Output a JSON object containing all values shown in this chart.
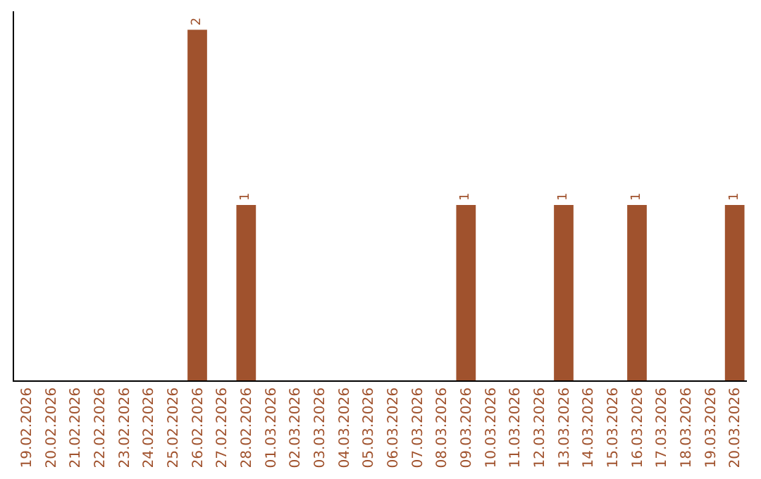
{
  "chart_data": {
    "type": "bar",
    "categories": [
      "19.02.2026",
      "20.02.2026",
      "21.02.2026",
      "22.02.2026",
      "23.02.2026",
      "24.02.2026",
      "25.02.2026",
      "26.02.2026",
      "27.02.2026",
      "28.02.2026",
      "01.03.2026",
      "02.03.2026",
      "03.03.2026",
      "04.03.2026",
      "05.03.2026",
      "06.03.2026",
      "07.03.2026",
      "08.03.2026",
      "09.03.2026",
      "10.03.2026",
      "11.03.2026",
      "12.03.2026",
      "13.03.2026",
      "14.03.2026",
      "15.03.2026",
      "16.03.2026",
      "17.03.2026",
      "18.03.2026",
      "19.03.2026",
      "20.03.2026"
    ],
    "values": [
      0,
      0,
      0,
      0,
      0,
      0,
      0,
      2,
      0,
      1,
      0,
      0,
      0,
      0,
      0,
      0,
      0,
      0,
      1,
      0,
      0,
      0,
      1,
      0,
      0,
      1,
      0,
      0,
      0,
      1
    ],
    "value_labels": [
      null,
      null,
      null,
      null,
      null,
      null,
      null,
      "2",
      null,
      "1",
      null,
      null,
      null,
      null,
      null,
      null,
      null,
      null,
      "1",
      null,
      null,
      null,
      "1",
      null,
      null,
      "1",
      null,
      null,
      null,
      "1"
    ],
    "color": "#a0522d",
    "tick_labels": "x"
  }
}
